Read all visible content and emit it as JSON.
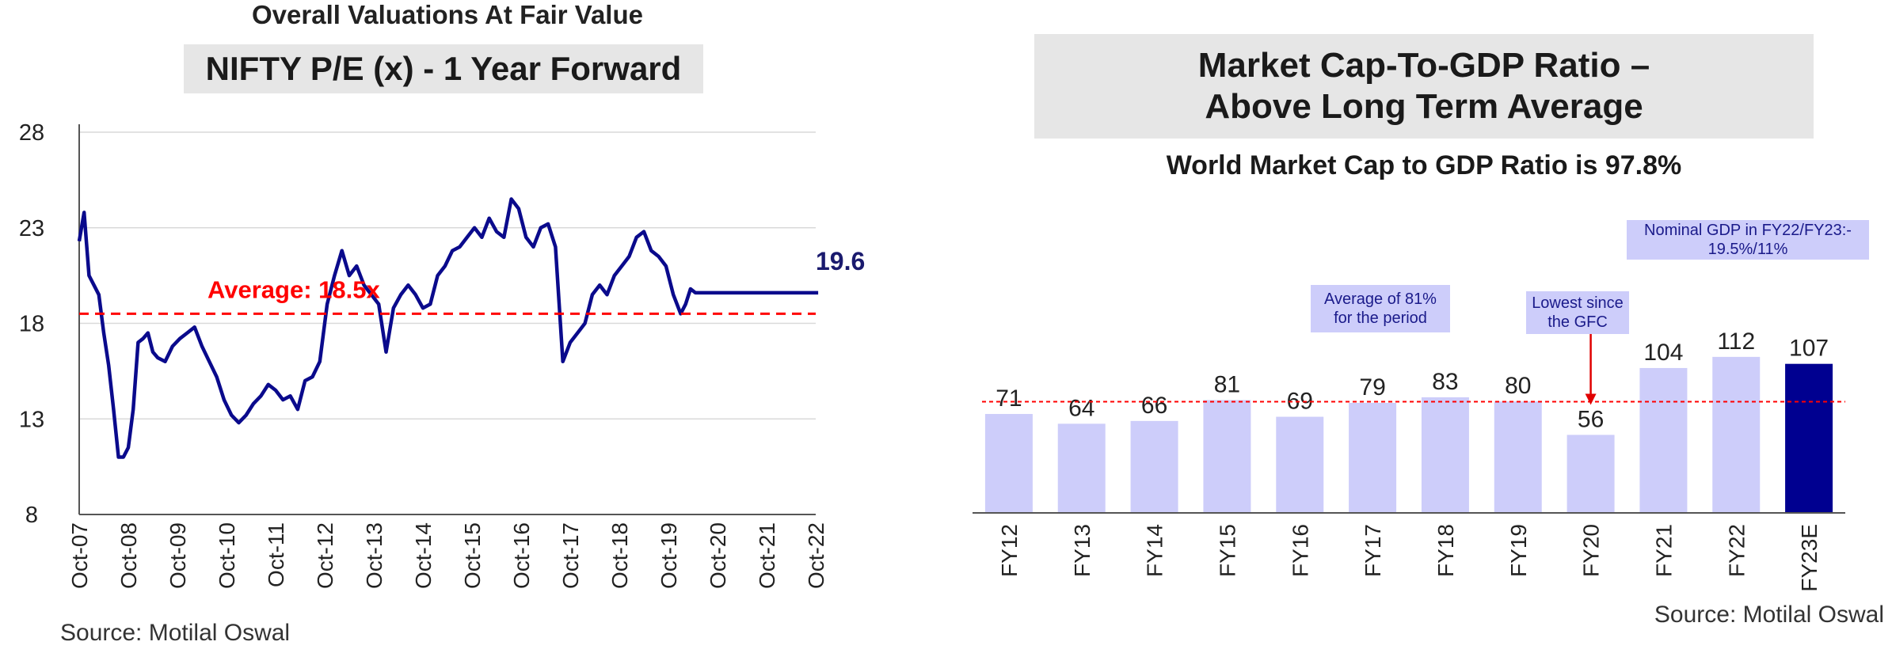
{
  "left": {
    "super_title": "Overall Valuations At Fair Value",
    "title": "NIFTY P/E (x) - 1 Year Forward",
    "source": "Source: Motilal Oswal"
  },
  "right": {
    "title_line1": "Market Cap-To-GDP Ratio –",
    "title_line2": "Above Long Term Average",
    "subtitle": "World Market Cap to GDP Ratio is 97.8%",
    "source": "Source: Motilal Oswal",
    "notes": {
      "nominal_gdp": "Nominal GDP in FY22/FY23:- 19.5%/11%",
      "average_line1": "Average of 81%",
      "average_line2": "for the period",
      "lowest_line1": "Lowest since",
      "lowest_line2": "the GFC"
    }
  },
  "colors": {
    "line": "#0a0a8c",
    "average": "#ff0000",
    "bar": "#cdcdfa",
    "bar_highlight": "#000090"
  },
  "chart_data": [
    {
      "type": "line",
      "title": "NIFTY P/E (x) - 1 Year Forward",
      "x_tick_labels": [
        "Oct-07",
        "Oct-08",
        "Oct-09",
        "Oct-10",
        "Oct-11",
        "Oct-12",
        "Oct-13",
        "Oct-14",
        "Oct-15",
        "Oct-16",
        "Oct-17",
        "Oct-18",
        "Oct-19",
        "Oct-20",
        "Oct-21",
        "Oct-22"
      ],
      "y_ticks": [
        8,
        13,
        18,
        23,
        28
      ],
      "ylim": [
        8,
        28
      ],
      "grid": true,
      "average": {
        "value": 18.5,
        "label": "Average: 18.5x"
      },
      "last_value_label": "19.6",
      "series": [
        {
          "x": [
            2007.75,
            2007.85,
            2007.95,
            2008.05,
            2008.15,
            2008.25,
            2008.35,
            2008.45,
            2008.55,
            2008.65,
            2008.75,
            2008.85,
            2008.95,
            2009.05,
            2009.15,
            2009.25,
            2009.35,
            2009.5,
            2009.65,
            2009.8,
            2009.95,
            2010.1,
            2010.25,
            2010.4,
            2010.55,
            2010.7,
            2010.85,
            2011.0,
            2011.15,
            2011.3,
            2011.45,
            2011.6,
            2011.75,
            2011.9,
            2012.05,
            2012.2,
            2012.35,
            2012.5,
            2012.65,
            2012.8,
            2012.95,
            2013.1,
            2013.25,
            2013.4,
            2013.55,
            2013.7,
            2013.85,
            2014.0,
            2014.15,
            2014.3,
            2014.45,
            2014.6,
            2014.75,
            2014.9,
            2015.05,
            2015.2,
            2015.35,
            2015.5,
            2015.65,
            2015.8,
            2015.95,
            2016.1,
            2016.25,
            2016.4,
            2016.55,
            2016.7,
            2016.85,
            2017.0,
            2017.15,
            2017.3,
            2017.45,
            2017.6,
            2017.75,
            2017.9,
            2018.05,
            2018.2,
            2018.35,
            2018.5,
            2018.65,
            2018.8,
            2018.95,
            2019.1,
            2019.25,
            2019.4,
            2019.55,
            2019.7,
            2019.85,
            2020.0,
            2020.1,
            2020.2,
            2020.3,
            2020.45,
            2020.6,
            2020.75,
            2020.9,
            2021.05,
            2021.2,
            2021.35,
            2021.5,
            2021.65,
            2021.8,
            2021.95,
            2022.1,
            2022.25,
            2022.4,
            2022.55,
            2022.7,
            2022.8
          ],
          "values": [
            22.3,
            23.8,
            20.5,
            20.0,
            19.5,
            17.5,
            15.8,
            13.5,
            11.0,
            11.0,
            11.5,
            13.5,
            17.0,
            17.2,
            17.5,
            16.5,
            16.2,
            16.0,
            16.8,
            17.2,
            17.5,
            17.8,
            16.8,
            16.0,
            15.2,
            14.0,
            13.2,
            12.8,
            13.2,
            13.8,
            14.2,
            14.8,
            14.5,
            14.0,
            14.2,
            13.5,
            15.0,
            15.2,
            16.0,
            19.0,
            20.5,
            21.8,
            20.5,
            21.0,
            20.0,
            19.5,
            19.0,
            16.5,
            18.8,
            19.5,
            20.0,
            19.5,
            18.8,
            19.0,
            20.5,
            21.0,
            21.8,
            22.0,
            22.5,
            23.0,
            22.5,
            23.5,
            22.8,
            22.5,
            24.5,
            24.0,
            22.5,
            22.0,
            23.0,
            23.2,
            22.0,
            16.0,
            17.0,
            17.5,
            18.0,
            19.5,
            20.0,
            19.5,
            20.5,
            21.0,
            21.5,
            22.5,
            22.8,
            21.8,
            21.5,
            21.0,
            19.5,
            18.5,
            19.0,
            19.8,
            19.6,
            19.6,
            19.6,
            19.6,
            19.6,
            19.6,
            19.6,
            19.6,
            19.6,
            19.6,
            19.6,
            19.6,
            19.6,
            19.6,
            19.6,
            19.6,
            19.6,
            19.6
          ]
        }
      ]
    },
    {
      "type": "bar",
      "title": "Market Cap-To-GDP Ratio – Above Long Term Average",
      "categories": [
        "FY12",
        "FY13",
        "FY14",
        "FY15",
        "FY16",
        "FY17",
        "FY18",
        "FY19",
        "FY20",
        "FY21",
        "FY22",
        "FY23E"
      ],
      "values": [
        71,
        64,
        66,
        81,
        69,
        79,
        83,
        80,
        56,
        104,
        112,
        107
      ],
      "average": 81,
      "ylim": [
        0,
        150
      ],
      "highlight": "FY23E",
      "grid": false
    }
  ]
}
